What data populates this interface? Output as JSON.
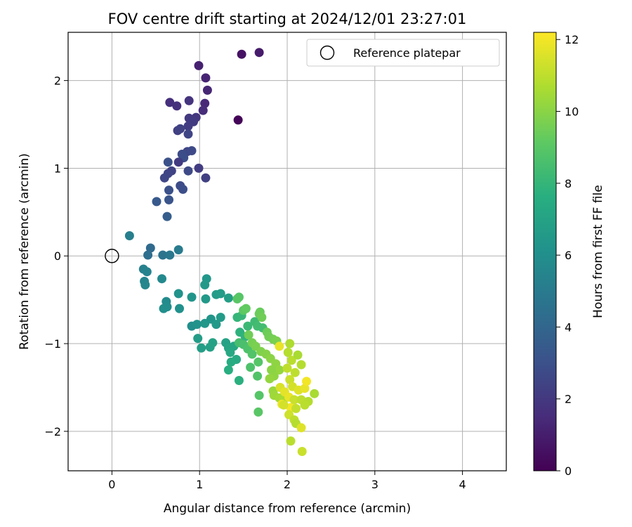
{
  "chart_data": {
    "type": "scatter",
    "title": "FOV centre drift starting at 2024/12/01 23:27:01",
    "xlabel": "Angular distance from reference (arcmin)",
    "ylabel": "Rotation from reference (arcmin)",
    "xlim": [
      -0.5,
      4.5
    ],
    "ylim": [
      -2.45,
      2.55
    ],
    "xticks": [
      0,
      1,
      2,
      3,
      4
    ],
    "yticks": [
      -2,
      -1,
      0,
      1,
      2
    ],
    "grid": true,
    "legend": {
      "label": "Reference platepar",
      "position": "top-right",
      "marker": "open-circle"
    },
    "colorbar": {
      "label": "Hours from first FF file",
      "min": 0,
      "max": 12.2,
      "ticks": [
        0,
        2,
        4,
        6,
        8,
        10,
        12
      ],
      "colormap": "viridis"
    },
    "reference_point": {
      "x": 0,
      "y": 0
    },
    "points": [
      [
        1.44,
        1.55,
        0.1
      ],
      [
        1.48,
        2.3,
        0.6
      ],
      [
        1.68,
        2.32,
        0.9
      ],
      [
        0.99,
        2.17,
        1.1
      ],
      [
        1.07,
        2.03,
        1.2
      ],
      [
        1.09,
        1.89,
        1.3
      ],
      [
        1.06,
        1.74,
        1.4
      ],
      [
        1.04,
        1.66,
        1.5
      ],
      [
        0.66,
        1.75,
        1.6
      ],
      [
        0.74,
        1.71,
        1.7
      ],
      [
        0.88,
        1.77,
        1.8
      ],
      [
        0.96,
        1.58,
        1.9
      ],
      [
        0.88,
        1.57,
        2.0
      ],
      [
        0.93,
        1.53,
        2.1
      ],
      [
        0.87,
        1.48,
        2.2
      ],
      [
        0.75,
        1.43,
        2.3
      ],
      [
        0.78,
        1.45,
        2.4
      ],
      [
        0.87,
        1.39,
        2.5
      ],
      [
        0.86,
        1.19,
        2.6
      ],
      [
        0.91,
        1.2,
        2.7
      ],
      [
        0.8,
        1.16,
        2.8
      ],
      [
        0.82,
        1.12,
        2.9
      ],
      [
        0.64,
        1.07,
        3.0
      ],
      [
        0.76,
        1.07,
        2.1
      ],
      [
        0.99,
        1.0,
        2.2
      ],
      [
        1.07,
        0.89,
        2.3
      ],
      [
        0.68,
        0.97,
        2.4
      ],
      [
        0.64,
        0.94,
        2.5
      ],
      [
        0.6,
        0.89,
        2.6
      ],
      [
        0.87,
        0.97,
        2.7
      ],
      [
        0.78,
        0.8,
        2.8
      ],
      [
        0.81,
        0.76,
        2.9
      ],
      [
        0.65,
        0.75,
        3.0
      ],
      [
        0.65,
        0.64,
        3.2
      ],
      [
        0.51,
        0.62,
        3.4
      ],
      [
        0.63,
        0.45,
        3.6
      ],
      [
        0.44,
        0.09,
        4.2
      ],
      [
        0.41,
        0.01,
        4.4
      ],
      [
        0.58,
        0.01,
        4.6
      ],
      [
        0.66,
        0.01,
        4.8
      ],
      [
        0.76,
        0.07,
        5.0
      ],
      [
        0.2,
        0.23,
        5.2
      ],
      [
        0.36,
        -0.15,
        5.3
      ],
      [
        0.4,
        -0.18,
        5.4
      ],
      [
        0.37,
        -0.29,
        5.5
      ],
      [
        0.38,
        -0.33,
        5.6
      ],
      [
        0.57,
        -0.26,
        5.7
      ],
      [
        0.62,
        -0.52,
        5.8
      ],
      [
        0.63,
        -0.58,
        5.9
      ],
      [
        0.59,
        -0.6,
        6.0
      ],
      [
        0.77,
        -0.6,
        6.1
      ],
      [
        0.76,
        -0.43,
        6.2
      ],
      [
        0.91,
        -0.47,
        6.3
      ],
      [
        1.08,
        -0.26,
        6.4
      ],
      [
        1.06,
        -0.33,
        6.5
      ],
      [
        1.19,
        -0.44,
        6.6
      ],
      [
        1.24,
        -0.43,
        6.7
      ],
      [
        1.33,
        -0.48,
        6.8
      ],
      [
        1.07,
        -0.49,
        6.5
      ],
      [
        0.91,
        -0.8,
        6.0
      ],
      [
        0.97,
        -0.78,
        6.2
      ],
      [
        1.06,
        -0.77,
        6.4
      ],
      [
        1.13,
        -0.72,
        6.3
      ],
      [
        1.19,
        -0.78,
        6.5
      ],
      [
        1.24,
        -0.7,
        6.6
      ],
      [
        0.98,
        -0.94,
        6.7
      ],
      [
        1.02,
        -1.05,
        6.8
      ],
      [
        1.12,
        -1.04,
        6.9
      ],
      [
        1.15,
        -0.99,
        7.0
      ],
      [
        1.3,
        -0.99,
        7.0
      ],
      [
        1.33,
        -1.05,
        7.1
      ],
      [
        1.39,
        -1.03,
        7.2
      ],
      [
        1.35,
        -1.1,
        7.3
      ],
      [
        1.42,
        -1.18,
        7.4
      ],
      [
        1.36,
        -1.21,
        7.5
      ],
      [
        1.33,
        -1.3,
        7.6
      ],
      [
        1.45,
        -1.42,
        7.7
      ],
      [
        1.46,
        -0.87,
        7.8
      ],
      [
        1.52,
        -0.92,
        7.9
      ],
      [
        1.43,
        -0.7,
        8.0
      ],
      [
        1.48,
        -0.68,
        8.1
      ],
      [
        1.55,
        -0.8,
        8.2
      ],
      [
        1.63,
        -0.75,
        8.3
      ],
      [
        1.66,
        -0.8,
        8.4
      ],
      [
        1.72,
        -0.82,
        8.4
      ],
      [
        1.45,
        -0.99,
        8.5
      ],
      [
        1.5,
        -1.01,
        8.6
      ],
      [
        1.55,
        -1.06,
        8.7
      ],
      [
        1.6,
        -1.12,
        8.8
      ],
      [
        1.67,
        -1.21,
        8.9
      ],
      [
        1.58,
        -1.27,
        8.7
      ],
      [
        1.66,
        -1.37,
        8.8
      ],
      [
        1.68,
        -1.59,
        8.9
      ],
      [
        1.67,
        -1.78,
        9.0
      ],
      [
        1.45,
        -0.47,
        8.9
      ],
      [
        1.43,
        -0.49,
        9.0
      ],
      [
        1.5,
        -0.62,
        9.1
      ],
      [
        1.53,
        -0.6,
        9.2
      ],
      [
        1.69,
        -0.64,
        9.3
      ],
      [
        1.68,
        -0.66,
        9.4
      ],
      [
        1.71,
        -0.7,
        9.5
      ],
      [
        1.77,
        -0.87,
        9.4
      ],
      [
        1.79,
        -0.92,
        9.5
      ],
      [
        1.84,
        -0.95,
        9.6
      ],
      [
        1.88,
        -0.97,
        9.7
      ],
      [
        1.56,
        -0.9,
        9.5
      ],
      [
        1.6,
        -0.99,
        9.6
      ],
      [
        1.64,
        -1.03,
        9.7
      ],
      [
        1.7,
        -1.09,
        9.8
      ],
      [
        1.76,
        -1.12,
        9.9
      ],
      [
        1.81,
        -1.17,
        10.0
      ],
      [
        1.87,
        -1.23,
        10.1
      ],
      [
        1.91,
        -1.3,
        10.2
      ],
      [
        1.82,
        -1.3,
        10.0
      ],
      [
        1.85,
        -1.37,
        10.1
      ],
      [
        1.8,
        -1.4,
        10.2
      ],
      [
        1.84,
        -1.54,
        10.3
      ],
      [
        1.85,
        -1.59,
        10.4
      ],
      [
        1.91,
        -1.62,
        10.5
      ],
      [
        1.95,
        -1.65,
        10.6
      ],
      [
        2.03,
        -1.0,
        10.7
      ],
      [
        2.01,
        -1.1,
        10.8
      ],
      [
        2.05,
        -1.19,
        10.9
      ],
      [
        2.0,
        -1.28,
        11.0
      ],
      [
        2.12,
        -1.13,
        10.6
      ],
      [
        2.16,
        -1.24,
        10.8
      ],
      [
        2.09,
        -1.33,
        11.0
      ],
      [
        2.03,
        -1.41,
        11.2
      ],
      [
        2.06,
        -1.49,
        11.4
      ],
      [
        2.13,
        -1.53,
        11.6
      ],
      [
        2.2,
        -1.51,
        11.8
      ],
      [
        2.22,
        -1.43,
        12.0
      ],
      [
        1.92,
        -1.5,
        11.5
      ],
      [
        1.97,
        -1.55,
        11.7
      ],
      [
        2.02,
        -1.61,
        11.8
      ],
      [
        1.94,
        -1.69,
        11.9
      ],
      [
        2.04,
        -1.73,
        12.0
      ],
      [
        1.96,
        -1.7,
        11.4
      ],
      [
        2.08,
        -1.64,
        11.2
      ],
      [
        2.16,
        -1.64,
        11.0
      ],
      [
        2.24,
        -1.66,
        10.8
      ],
      [
        2.31,
        -1.57,
        10.6
      ],
      [
        2.2,
        -1.7,
        10.9
      ],
      [
        2.1,
        -1.74,
        11.1
      ],
      [
        2.02,
        -1.81,
        11.3
      ],
      [
        2.08,
        -1.87,
        11.0
      ],
      [
        2.1,
        -1.91,
        10.8
      ],
      [
        2.04,
        -2.11,
        10.9
      ],
      [
        2.16,
        -1.96,
        11.6
      ],
      [
        2.17,
        -2.23,
        11.2
      ],
      [
        1.91,
        -1.03,
        11.8
      ]
    ]
  }
}
